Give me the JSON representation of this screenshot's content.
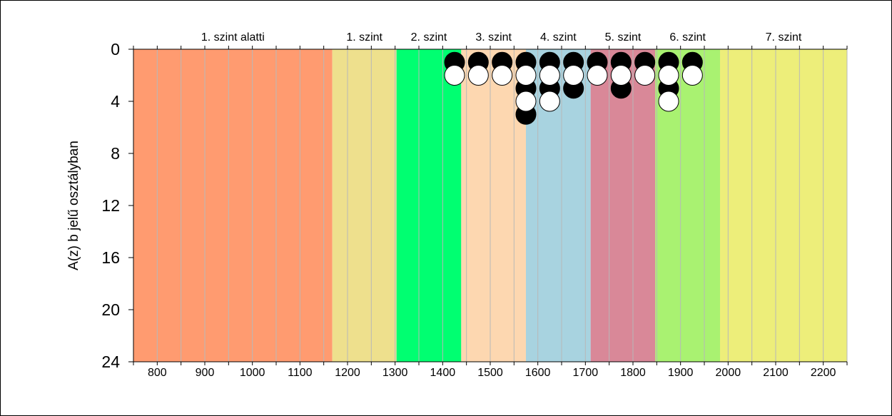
{
  "chart_data": {
    "type": "scatter",
    "title": "",
    "xlabel": "",
    "ylabel": "A(z) b jelű osztályban",
    "xlim": [
      750,
      2250
    ],
    "ylim": [
      0,
      24
    ],
    "y_inverted": true,
    "x_ticks": [
      800,
      900,
      1000,
      1100,
      1200,
      1300,
      1400,
      1500,
      1600,
      1700,
      1800,
      1900,
      2000,
      2100,
      2200
    ],
    "y_ticks": [
      0,
      4,
      8,
      12,
      16,
      20,
      24
    ],
    "levels": [
      {
        "label": "1. szint alatti",
        "from": 750,
        "to": 1168,
        "color": "#FF9B70"
      },
      {
        "label": "1. szint",
        "from": 1168,
        "to": 1303,
        "color": "#EEE08D"
      },
      {
        "label": "2. szint",
        "from": 1303,
        "to": 1439,
        "color": "#00FF71"
      },
      {
        "label": "3. szint",
        "from": 1439,
        "to": 1575,
        "color": "#FDD7B0"
      },
      {
        "label": "4. szint",
        "from": 1575,
        "to": 1711,
        "color": "#A8D3E0"
      },
      {
        "label": "5. szint",
        "from": 1711,
        "to": 1847,
        "color": "#D98898"
      },
      {
        "label": "6. szint",
        "from": 1847,
        "to": 1983,
        "color": "#A9F271"
      },
      {
        "label": "7. szint",
        "from": 1983,
        "to": 2250,
        "color": "#EDEE7A"
      }
    ],
    "series": [
      {
        "marker": "filled-black",
        "color": "#000000",
        "points": [
          [
            1425,
            1
          ],
          [
            1475,
            1
          ],
          [
            1525,
            1
          ],
          [
            1575,
            1
          ],
          [
            1575,
            3
          ],
          [
            1575,
            5
          ],
          [
            1625,
            1
          ],
          [
            1625,
            3
          ],
          [
            1675,
            1
          ],
          [
            1675,
            3
          ],
          [
            1725,
            1
          ],
          [
            1775,
            1
          ],
          [
            1775,
            3
          ],
          [
            1825,
            1
          ],
          [
            1875,
            1
          ],
          [
            1875,
            3
          ],
          [
            1925,
            1
          ]
        ]
      },
      {
        "marker": "open-white",
        "color": "#FFFFFF",
        "points": [
          [
            1425,
            2
          ],
          [
            1475,
            2
          ],
          [
            1525,
            2
          ],
          [
            1575,
            2
          ],
          [
            1575,
            4
          ],
          [
            1625,
            2
          ],
          [
            1625,
            4
          ],
          [
            1675,
            2
          ],
          [
            1725,
            2
          ],
          [
            1775,
            2
          ],
          [
            1825,
            2
          ],
          [
            1875,
            2
          ],
          [
            1875,
            4
          ],
          [
            1925,
            2
          ]
        ]
      }
    ]
  }
}
